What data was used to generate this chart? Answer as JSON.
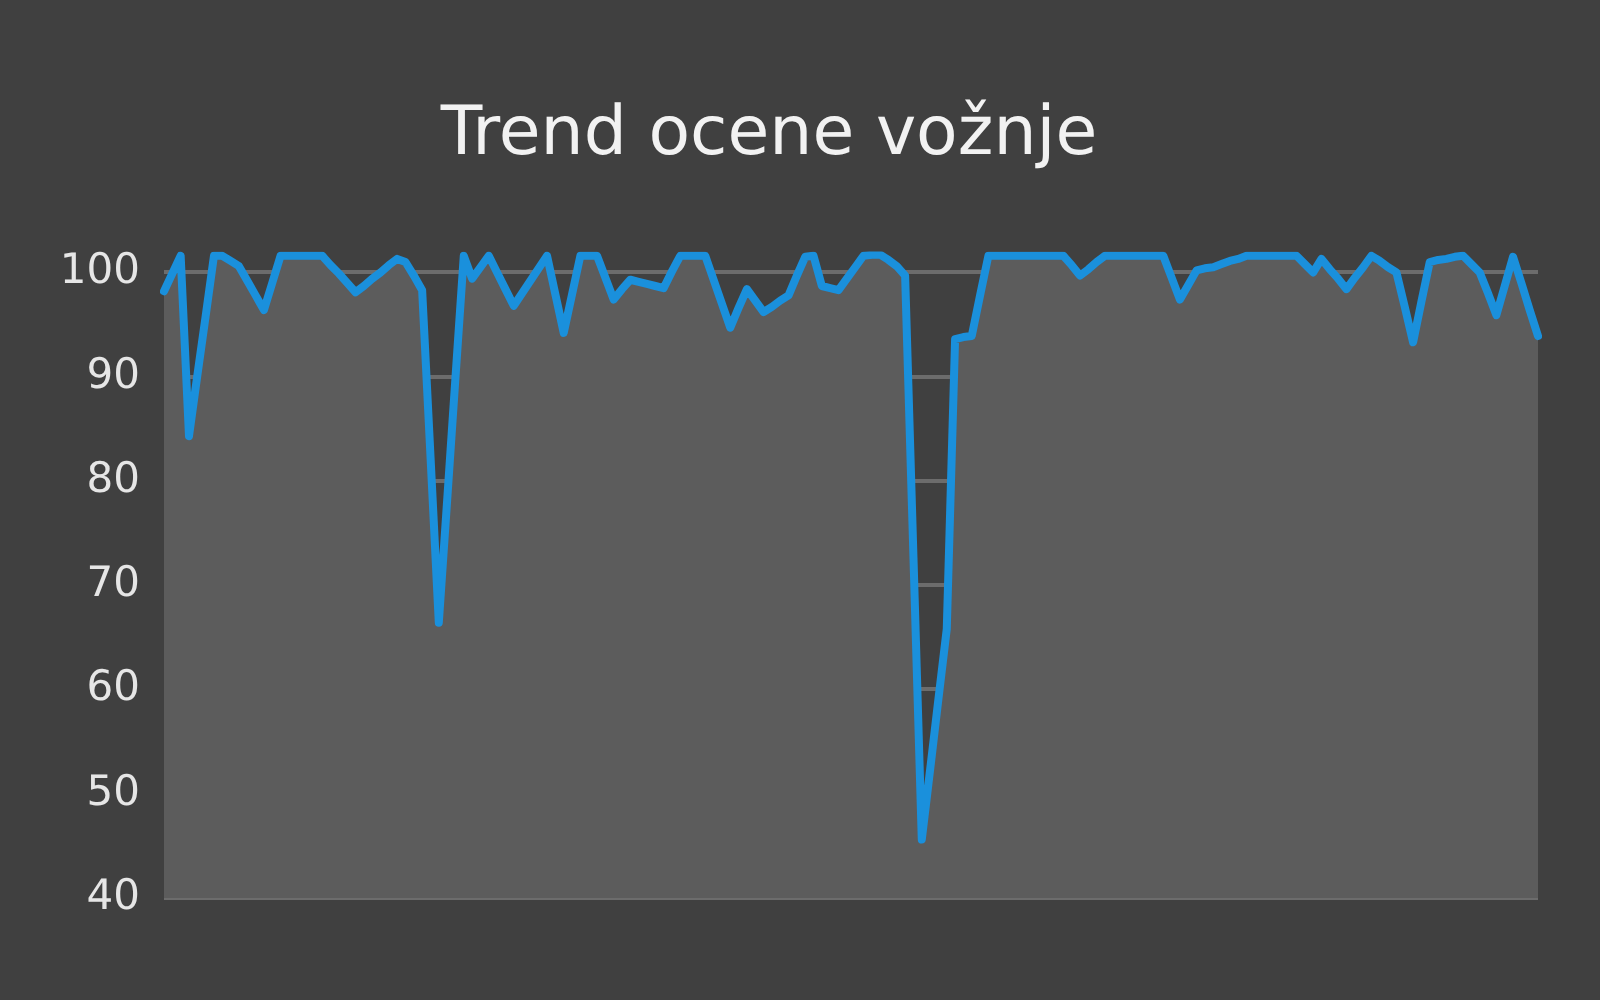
{
  "chart_data": {
    "type": "line",
    "title": "Trend ocene vožnje",
    "categories": [
      null,
      null,
      null,
      null,
      null,
      null,
      null,
      null,
      null,
      null,
      null,
      null,
      null,
      null,
      null,
      null,
      null,
      null,
      null,
      null,
      null,
      null,
      null,
      null,
      null,
      null,
      null,
      null,
      null,
      null,
      null,
      null,
      null,
      null,
      null,
      null,
      null,
      null,
      null,
      null,
      null,
      null,
      null,
      null,
      null,
      null,
      null,
      null,
      null,
      null,
      null,
      null,
      null,
      null,
      null,
      null,
      null,
      null,
      null,
      null,
      null,
      null,
      null,
      null,
      null,
      null,
      null,
      null,
      null,
      null,
      null,
      null,
      null,
      null,
      null,
      null,
      null,
      null,
      null,
      null,
      null,
      null,
      null,
      null,
      null,
      null,
      null,
      null,
      null,
      null,
      null,
      null,
      null,
      null,
      null,
      null,
      null,
      null,
      null,
      null,
      null,
      null,
      null,
      null,
      null,
      null,
      null,
      null,
      null,
      null,
      null,
      null,
      null,
      null,
      null,
      null,
      null,
      null,
      null,
      null,
      null,
      null,
      null,
      null,
      null,
      null,
      null,
      null,
      null,
      null,
      null,
      null,
      null,
      null,
      null,
      null,
      null,
      null,
      null,
      null,
      null,
      null,
      null,
      null,
      null,
      null,
      null,
      null,
      null,
      null,
      null,
      null,
      null,
      null,
      null,
      null,
      null,
      null,
      null,
      null,
      null,
      null,
      null,
      null,
      null,
      null
    ],
    "series": [
      {
        "color": "#1a90dc",
        "values": [
          98.2,
          99.9,
          101.6,
          84.3,
          90.1,
          95.8,
          101.6,
          101.6,
          101.1,
          100.6,
          99.2,
          97.8,
          96.4,
          99.0,
          101.6,
          101.6,
          101.6,
          101.6,
          101.6,
          101.6,
          100.7,
          99.9,
          99.0,
          98.1,
          98.7,
          99.4,
          100.0,
          100.7,
          101.3,
          101,
          99.7,
          98.3,
          82.4,
          66.4,
          78.1,
          89.9,
          101.6,
          99.4,
          100.5,
          101.6,
          100.0,
          98.4,
          96.8,
          98.0,
          99.2,
          100.4,
          101.6,
          97.9,
          94.2,
          97.9,
          101.6,
          101.6,
          101.6,
          99.5,
          97.4,
          98.4,
          99.3,
          99.1,
          98.9,
          98.7,
          98.5,
          100.1,
          101.6,
          101.6,
          101.6,
          101.6,
          99.3,
          97.0,
          94.7,
          96.6,
          98.4,
          97.3,
          96.2,
          96.7,
          97.3,
          97.8,
          99.7,
          101.5,
          101.6,
          98.7,
          98.5,
          98.3,
          99.4,
          100.5,
          101.6,
          101.7,
          101.7,
          101.2,
          100.6,
          99.7,
          72.7,
          45.6,
          52.3,
          59.1,
          65.8,
          93.6,
          93.8,
          93.9,
          97.8,
          101.6,
          101.6,
          101.6,
          101.6,
          101.6,
          101.6,
          101.6,
          101.6,
          101.6,
          101.6,
          100.7,
          99.7,
          100.3,
          101.0,
          101.6,
          101.6,
          101.6,
          101.6,
          101.6,
          101.6,
          101.6,
          101.6,
          99.5,
          97.4,
          98.8,
          100.2,
          100.4,
          100.5,
          100.8,
          101.1,
          101.3,
          101.6,
          101.6,
          101.6,
          101.6,
          101.6,
          101.6,
          101.6,
          100.8,
          100,
          101.3,
          100.3,
          99.4,
          98.4,
          99.5,
          100.5,
          101.6,
          101.1,
          100.5,
          100,
          96.7,
          93.3,
          97.2,
          101,
          101.2,
          101.3,
          101.5,
          101.6,
          100.8,
          100,
          98.0,
          95.9,
          98.7,
          101.5,
          99.0,
          96.4,
          93.9
        ]
      }
    ],
    "ylim": [
      40,
      102
    ],
    "yticks": [
      40,
      50,
      60,
      70,
      80,
      90,
      100
    ],
    "grid": "y",
    "tick_labels": "y",
    "legend": false
  }
}
